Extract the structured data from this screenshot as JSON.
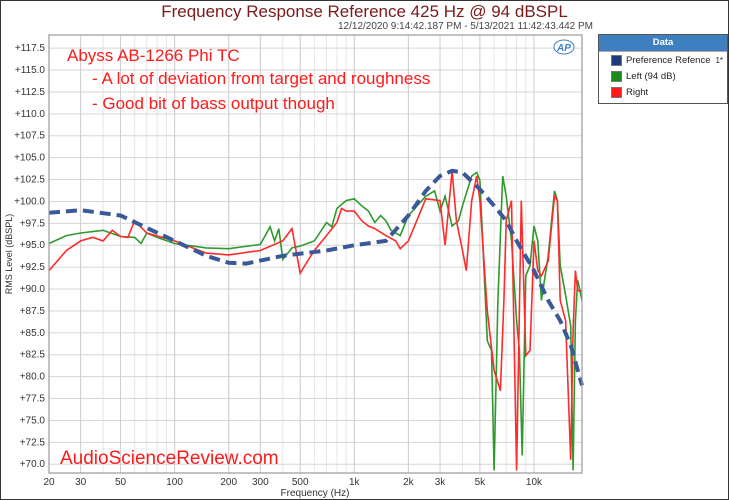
{
  "colors": {
    "target": "#3b5998",
    "left": "#2e9a2e",
    "right": "#ff2a2a",
    "title": "#7a1a1a",
    "legend_header": "#3d7fbf"
  },
  "legend": {
    "header": "Data",
    "items": [
      {
        "label": "Preference Refence",
        "channel": "1*",
        "color": "#1f3a7a"
      },
      {
        "label": "Left (94 dB)",
        "channel": "",
        "color": "#1a8a1a"
      },
      {
        "label": "Right",
        "channel": "",
        "color": "#ff1a1a"
      }
    ]
  },
  "chart_data": {
    "type": "line",
    "title": "Frequency Response Reference 425 Hz @ 94 dBSPL",
    "subtitle": "12/12/2020 9:14:42.187 PM - 5/13/2021 11:42:43.442 PM",
    "xlabel": "Frequency (Hz)",
    "ylabel": "RMS Level (dBSPL)",
    "xscale": "log",
    "xlim": [
      20,
      18500
    ],
    "ylim": [
      69,
      119
    ],
    "grid": true,
    "legend_position": "outside-right",
    "x_ticks": [
      {
        "v": 20,
        "l": "20"
      },
      {
        "v": 30,
        "l": "30"
      },
      {
        "v": 50,
        "l": "50"
      },
      {
        "v": 100,
        "l": "100"
      },
      {
        "v": 200,
        "l": "200"
      },
      {
        "v": 300,
        "l": "300"
      },
      {
        "v": 500,
        "l": "500"
      },
      {
        "v": 1000,
        "l": "1k"
      },
      {
        "v": 2000,
        "l": "2k"
      },
      {
        "v": 3000,
        "l": "3k"
      },
      {
        "v": 5000,
        "l": "5k"
      },
      {
        "v": 10000,
        "l": "10k"
      }
    ],
    "y_ticks": [
      "+117.5",
      "+115.0",
      "+112.5",
      "+110.0",
      "+107.5",
      "+105.0",
      "+102.5",
      "+100.0",
      "+97.5",
      "+95.0",
      "+92.5",
      "+90.0",
      "+87.5",
      "+85.0",
      "+82.5",
      "+80.0",
      "+77.5",
      "+75.0",
      "+72.5",
      "+70.0"
    ],
    "annotations": [
      "Abyss AB-1266 Phi TC",
      "- A lot of deviation from target and roughness",
      "- Good bit of bass output though"
    ],
    "watermark": "AudioScienceReview.com",
    "series": [
      {
        "name": "Preference Refence",
        "style": "dashed",
        "x": [
          20,
          30,
          50,
          100,
          150,
          200,
          250,
          400,
          700,
          1000,
          1500,
          2000,
          2500,
          3000,
          3500,
          4000,
          5000,
          6000,
          7000,
          8000,
          10000,
          12000,
          14000,
          16000,
          18500
        ],
        "y": [
          98.7,
          99.0,
          98.4,
          95.5,
          93.8,
          93.0,
          92.9,
          93.8,
          94.4,
          95.0,
          95.5,
          98.4,
          101.2,
          102.9,
          103.5,
          103.3,
          101.4,
          99.5,
          97.8,
          95.5,
          92.1,
          88.7,
          86.4,
          83.6,
          79.0
        ]
      },
      {
        "name": "Left (94 dB)",
        "x": [
          20,
          25,
          30,
          40,
          50,
          60,
          65,
          70,
          80,
          100,
          150,
          200,
          300,
          340,
          360,
          380,
          400,
          450,
          500,
          600,
          700,
          750,
          800,
          900,
          1000,
          1100,
          1200,
          1300,
          1400,
          1500,
          1600,
          1800,
          2000,
          2500,
          2800,
          3000,
          3200,
          3500,
          3800,
          4000,
          4500,
          4800,
          5000,
          5500,
          5800,
          6000,
          6300,
          6700,
          7000,
          7500,
          8000,
          8300,
          8600,
          9000,
          9500,
          10000,
          10500,
          11000,
          12000,
          13000,
          13500,
          14000,
          15000,
          16000,
          16500,
          17000,
          17500,
          18500
        ],
        "y": [
          95.2,
          96.1,
          96.4,
          96.7,
          96.0,
          95.9,
          95.2,
          96.4,
          95.9,
          95.2,
          94.7,
          94.6,
          95.1,
          97.1,
          95.5,
          96.9,
          93.4,
          94.7,
          94.9,
          95.5,
          97.6,
          97.1,
          99.2,
          100.1,
          100.3,
          99.5,
          98.9,
          97.6,
          98.4,
          97.8,
          96.7,
          96.1,
          98.4,
          100.6,
          101.2,
          98.9,
          100.6,
          97.2,
          97.8,
          99.5,
          102.9,
          103.3,
          102.4,
          84.1,
          83.0,
          69.3,
          88.7,
          102.9,
          100.6,
          95.5,
          86.4,
          83.0,
          71.0,
          91.5,
          92.7,
          97.2,
          95.5,
          88.7,
          93.8,
          101.2,
          100.1,
          92.7,
          89.3,
          85.8,
          69.3,
          86.4,
          91.0,
          88.7
        ]
      },
      {
        "name": "Right",
        "x": [
          20,
          25,
          30,
          35,
          40,
          45,
          50,
          55,
          60,
          70,
          100,
          150,
          200,
          300,
          400,
          450,
          500,
          550,
          600,
          700,
          800,
          850,
          900,
          1000,
          1100,
          1200,
          1300,
          1500,
          1700,
          1800,
          2000,
          2500,
          3000,
          3200,
          3500,
          3700,
          4000,
          4200,
          4500,
          4800,
          5000,
          5500,
          6000,
          6500,
          6800,
          7000,
          7500,
          8000,
          8500,
          9000,
          9500,
          10000,
          10500,
          11000,
          12000,
          13000,
          13500,
          14000,
          15000,
          16000,
          16500,
          17000,
          17500,
          18500
        ],
        "y": [
          92.1,
          94.4,
          95.5,
          95.9,
          95.5,
          96.7,
          96.0,
          95.9,
          97.8,
          96.4,
          95.5,
          94.1,
          93.9,
          94.4,
          95.5,
          96.9,
          91.8,
          93.2,
          94.4,
          96.1,
          97.6,
          99.2,
          98.9,
          98.9,
          97.8,
          97.2,
          96.9,
          96.1,
          95.5,
          94.6,
          95.5,
          100.3,
          100.1,
          95.0,
          103.5,
          97.8,
          94.4,
          92.1,
          100.1,
          102.9,
          100.1,
          87.5,
          80.7,
          78.4,
          88.7,
          97.8,
          100.1,
          69.3,
          100.1,
          82.4,
          83.0,
          95.5,
          92.1,
          91.5,
          93.2,
          100.6,
          100.1,
          88.7,
          86.4,
          70.5,
          85.3,
          92.1,
          89.8,
          89.8
        ]
      }
    ]
  }
}
